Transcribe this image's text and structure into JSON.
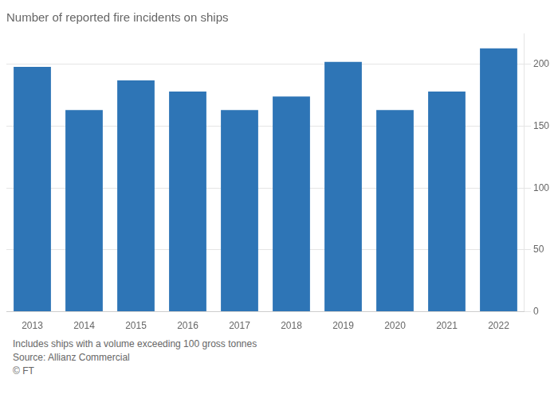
{
  "chart_data": {
    "type": "bar",
    "title": "Number of reported fire incidents on ships",
    "categories": [
      "2013",
      "2014",
      "2015",
      "2016",
      "2017",
      "2018",
      "2019",
      "2020",
      "2021",
      "2022"
    ],
    "values": [
      198,
      163,
      187,
      178,
      163,
      174,
      202,
      163,
      178,
      213
    ],
    "color": "#2e75b6",
    "ylim": [
      0,
      225
    ],
    "yticks": [
      0,
      50,
      100,
      150,
      200
    ],
    "grid": true,
    "annotations": [
      "Includes ships with a volume exceeding 100 gross tonnes",
      "Source: Allianz Commercial",
      "© FT"
    ]
  }
}
